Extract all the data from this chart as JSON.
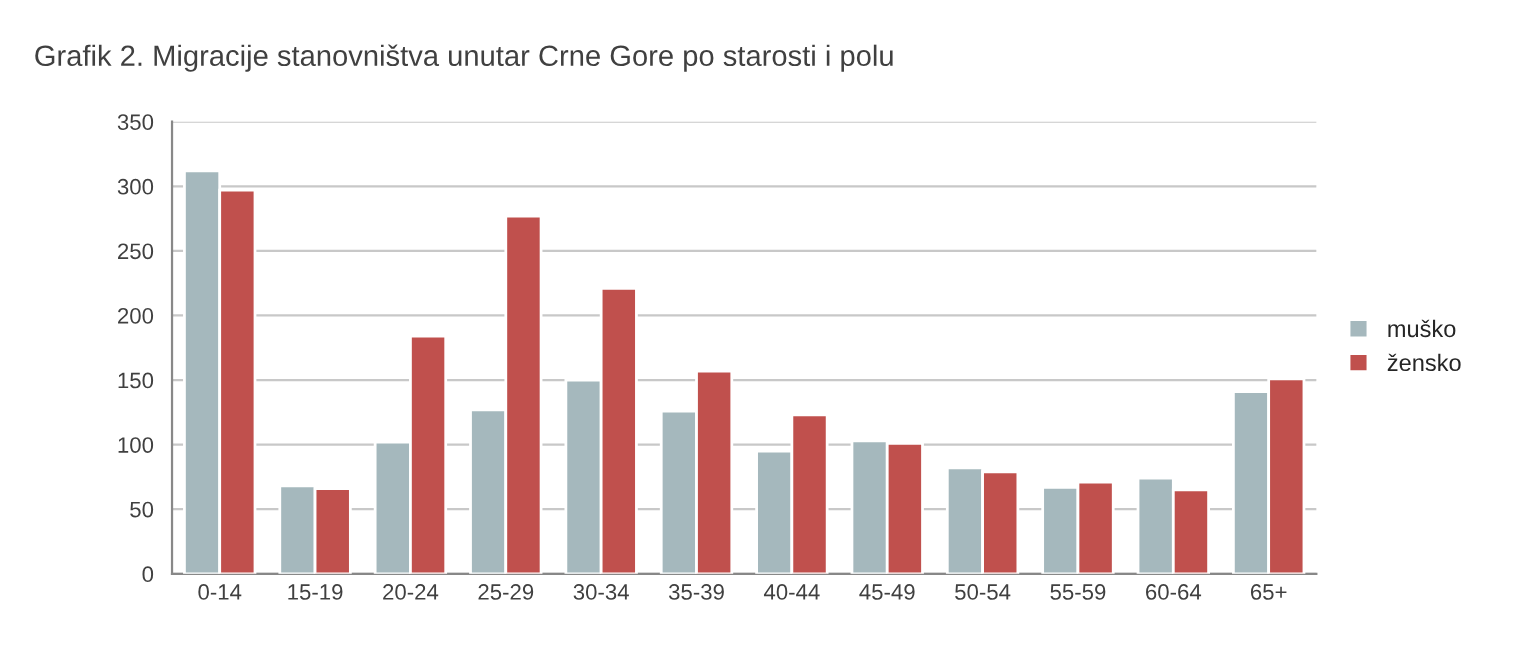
{
  "chart_data": {
    "type": "bar",
    "title": "Grafik 2. Migracije stanovništva unutar Crne Gore po starosti i polu",
    "categories": [
      "0-14",
      "15-19",
      "20-24",
      "25-29",
      "30-34",
      "35-39",
      "40-44",
      "45-49",
      "50-54",
      "55-59",
      "60-64",
      "65+"
    ],
    "series": [
      {
        "name": "muško",
        "color": "#a5b8bd",
        "values": [
          312,
          68,
          102,
          127,
          150,
          126,
          95,
          103,
          82,
          67,
          74,
          141
        ]
      },
      {
        "name": "žensko",
        "color": "#c0504d",
        "values": [
          297,
          66,
          184,
          277,
          221,
          157,
          123,
          101,
          79,
          71,
          65,
          151
        ]
      }
    ],
    "ylim": [
      0,
      350
    ],
    "yticks": [
      0,
      50,
      100,
      150,
      200,
      250,
      300,
      350
    ],
    "grid": "y",
    "legend": "right"
  }
}
